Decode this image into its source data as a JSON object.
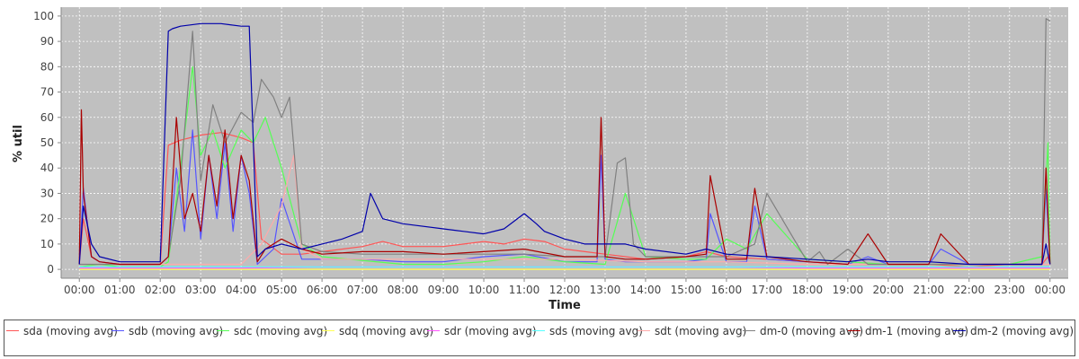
{
  "chart_data": {
    "type": "line",
    "title": "",
    "xlabel": "Time",
    "ylabel": "% util",
    "ylim": [
      0,
      100
    ],
    "xlim": [
      "00:00",
      "24:00"
    ],
    "yticks": [
      0,
      10,
      20,
      30,
      40,
      50,
      60,
      70,
      80,
      90,
      100
    ],
    "xticks": [
      "00:00",
      "01:00",
      "02:00",
      "03:00",
      "04:00",
      "05:00",
      "06:00",
      "07:00",
      "08:00",
      "09:00",
      "10:00",
      "11:00",
      "12:00",
      "13:00",
      "14:00",
      "15:00",
      "16:00",
      "17:00",
      "18:00",
      "19:00",
      "20:00",
      "21:00",
      "22:00",
      "23:00",
      "00:00"
    ],
    "grid": true,
    "legend_position": "bottom",
    "background": "#c0c0c0",
    "series": [
      {
        "name": "sda (moving avg)",
        "color": "#ff5555",
        "x": [
          0.0,
          0.1,
          0.3,
          0.5,
          1.0,
          1.5,
          2.0,
          2.2,
          2.5,
          3.0,
          3.5,
          4.0,
          4.3,
          4.5,
          5.0,
          5.5,
          6.0,
          7.0,
          7.5,
          8.0,
          9.0,
          10.0,
          10.5,
          11.0,
          11.5,
          12.0,
          12.5,
          13.0,
          13.5,
          14.0,
          15.0,
          15.5,
          16.0,
          17.0,
          18.0,
          19.0,
          20.0,
          21.0,
          22.0,
          23.0,
          23.8,
          23.95,
          24.0
        ],
        "y": [
          2,
          20,
          5,
          3,
          2,
          2,
          2,
          49,
          51,
          53,
          54,
          52,
          50,
          12,
          6,
          6,
          7,
          9,
          11,
          9,
          9,
          11,
          10,
          12,
          11,
          8,
          7,
          6,
          5,
          4,
          5,
          7,
          5,
          4,
          3,
          2,
          2,
          2,
          1,
          2,
          2,
          5,
          2
        ]
      },
      {
        "name": "sdb (moving avg)",
        "color": "#5555ff",
        "x": [
          0.0,
          0.1,
          0.3,
          0.5,
          1.0,
          1.5,
          2.0,
          2.2,
          2.4,
          2.6,
          2.8,
          3.0,
          3.2,
          3.4,
          3.6,
          3.8,
          4.0,
          4.2,
          4.4,
          4.6,
          4.8,
          5.0,
          5.5,
          6.0,
          7.0,
          8.0,
          9.0,
          10.0,
          11.0,
          12.0,
          12.8,
          12.9,
          13.0,
          13.5,
          14.0,
          15.0,
          15.5,
          15.6,
          16.0,
          16.5,
          16.7,
          17.0,
          18.0,
          19.0,
          19.5,
          20.0,
          21.0,
          21.3,
          22.0,
          23.0,
          23.8,
          23.9,
          24.0
        ],
        "y": [
          2,
          32,
          5,
          3,
          2,
          2,
          2,
          5,
          40,
          15,
          55,
          12,
          45,
          20,
          50,
          15,
          45,
          30,
          2,
          5,
          8,
          28,
          4,
          4,
          4,
          3,
          3,
          5,
          6,
          3,
          3,
          45,
          4,
          3,
          3,
          3,
          4,
          22,
          3,
          3,
          25,
          4,
          3,
          2,
          5,
          2,
          2,
          8,
          2,
          2,
          2,
          32,
          2
        ]
      },
      {
        "name": "sdc (moving avg)",
        "color": "#55ff55",
        "x": [
          0.0,
          0.5,
          1.0,
          2.0,
          2.2,
          2.5,
          2.8,
          3.0,
          3.3,
          3.6,
          4.0,
          4.3,
          4.6,
          5.0,
          5.5,
          6.0,
          8.0,
          9.0,
          10.0,
          11.0,
          12.0,
          13.0,
          13.5,
          14.0,
          15.0,
          15.5,
          16.0,
          16.5,
          17.0,
          18.0,
          19.0,
          20.0,
          21.0,
          22.0,
          23.0,
          23.8,
          23.95,
          24.0
        ],
        "y": [
          1,
          2,
          1,
          1,
          3,
          40,
          80,
          45,
          55,
          40,
          55,
          50,
          60,
          40,
          10,
          5,
          2,
          2,
          3,
          5,
          3,
          2,
          30,
          5,
          4,
          4,
          12,
          8,
          22,
          4,
          3,
          2,
          2,
          2,
          2,
          5,
          50,
          2
        ]
      },
      {
        "name": "sdq (moving avg)",
        "color": "#ffff55",
        "x": [
          0.0,
          6.0,
          12.0,
          18.0,
          24.0
        ],
        "y": [
          0,
          0,
          0,
          0,
          0
        ]
      },
      {
        "name": "sdr (moving avg)",
        "color": "#ff55ff",
        "x": [
          0.0,
          2.0,
          4.0,
          6.0,
          8.0,
          10.0,
          12.0,
          14.0,
          16.0,
          18.0,
          20.0,
          22.0,
          24.0
        ],
        "y": [
          0.5,
          0.5,
          0.5,
          1,
          1,
          1,
          1,
          1,
          1,
          0.5,
          0.5,
          0.5,
          0.5
        ]
      },
      {
        "name": "sds (moving avg)",
        "color": "#55ffff",
        "x": [
          0.0,
          2.0,
          4.0,
          6.0,
          8.0,
          10.0,
          12.0,
          14.0,
          16.0,
          18.0,
          20.0,
          22.0,
          24.0
        ],
        "y": [
          1,
          1,
          1,
          1,
          1,
          1,
          1,
          1,
          1,
          1,
          1,
          1,
          1
        ]
      },
      {
        "name": "sdt (moving avg)",
        "color": "#ffaaaa",
        "x": [
          0.0,
          1.0,
          2.0,
          2.5,
          3.0,
          4.0,
          4.5,
          5.0,
          5.3,
          5.5,
          6.0,
          8.0,
          10.0,
          12.0,
          14.0,
          16.0,
          18.0,
          20.0,
          22.0,
          24.0
        ],
        "y": [
          2,
          2,
          2,
          2,
          2,
          2,
          10,
          25,
          45,
          8,
          4,
          4,
          4,
          4,
          3,
          3,
          2,
          2,
          2,
          2
        ]
      },
      {
        "name": "dm-0 (moving avg)",
        "color": "#808080",
        "x": [
          0.0,
          0.5,
          1.0,
          2.0,
          2.2,
          2.5,
          2.8,
          3.0,
          3.3,
          3.6,
          4.0,
          4.3,
          4.5,
          4.8,
          5.0,
          5.2,
          5.5,
          6.0,
          7.0,
          8.0,
          9.0,
          10.0,
          11.0,
          12.0,
          13.0,
          13.3,
          13.5,
          13.7,
          14.0,
          15.0,
          15.6,
          16.0,
          16.7,
          17.0,
          18.0,
          18.3,
          18.5,
          19.0,
          19.5,
          20.0,
          21.0,
          22.0,
          23.0,
          23.8,
          23.9,
          24.0
        ],
        "y": [
          2,
          2,
          2,
          2,
          5,
          35,
          94,
          35,
          65,
          50,
          62,
          58,
          75,
          68,
          60,
          68,
          10,
          7,
          6,
          6,
          6,
          6,
          6,
          5,
          5,
          42,
          44,
          10,
          5,
          5,
          5,
          5,
          10,
          30,
          3,
          7,
          2,
          8,
          2,
          2,
          2,
          2,
          2,
          2,
          99,
          98
        ]
      },
      {
        "name": "dm-1 (moving avg)",
        "color": "#aa0000",
        "x": [
          0.0,
          0.05,
          0.1,
          0.3,
          0.5,
          1.0,
          2.0,
          2.2,
          2.4,
          2.6,
          2.8,
          3.0,
          3.2,
          3.4,
          3.6,
          3.8,
          4.0,
          4.2,
          4.4,
          4.6,
          5.0,
          5.5,
          6.0,
          7.0,
          8.0,
          9.0,
          10.0,
          11.0,
          12.0,
          12.8,
          12.9,
          13.0,
          13.5,
          14.0,
          15.0,
          15.5,
          15.6,
          16.0,
          16.5,
          16.7,
          17.0,
          18.0,
          19.0,
          19.5,
          20.0,
          21.0,
          21.3,
          22.0,
          23.0,
          23.8,
          23.9,
          24.0
        ],
        "y": [
          2,
          63,
          30,
          5,
          3,
          2,
          2,
          5,
          60,
          20,
          30,
          15,
          45,
          25,
          55,
          20,
          45,
          35,
          3,
          8,
          12,
          8,
          6,
          7,
          7,
          6,
          7,
          8,
          5,
          5,
          60,
          5,
          4,
          4,
          5,
          6,
          37,
          4,
          4,
          32,
          5,
          3,
          2,
          14,
          2,
          2,
          14,
          2,
          2,
          2,
          40,
          2
        ]
      },
      {
        "name": "dm-2 (moving avg)",
        "color": "#0000aa",
        "x": [
          0.0,
          0.1,
          0.3,
          0.5,
          1.0,
          1.5,
          2.0,
          2.2,
          2.3,
          2.5,
          3.0,
          3.5,
          4.0,
          4.2,
          4.4,
          4.6,
          5.0,
          5.5,
          6.0,
          6.5,
          7.0,
          7.2,
          7.5,
          8.0,
          9.0,
          9.5,
          10.0,
          10.5,
          11.0,
          11.3,
          11.5,
          12.0,
          12.5,
          13.0,
          13.5,
          14.0,
          15.0,
          15.5,
          16.0,
          17.0,
          18.0,
          19.0,
          19.5,
          20.0,
          21.0,
          22.0,
          23.0,
          23.8,
          23.9,
          24.0
        ],
        "y": [
          2,
          25,
          10,
          5,
          3,
          3,
          3,
          94,
          95,
          96,
          97,
          97,
          96,
          96,
          5,
          8,
          10,
          8,
          10,
          12,
          15,
          30,
          20,
          18,
          16,
          15,
          14,
          16,
          22,
          18,
          15,
          12,
          10,
          10,
          10,
          8,
          6,
          8,
          6,
          5,
          4,
          3,
          4,
          3,
          3,
          2,
          2,
          2,
          10,
          2
        ]
      }
    ]
  }
}
